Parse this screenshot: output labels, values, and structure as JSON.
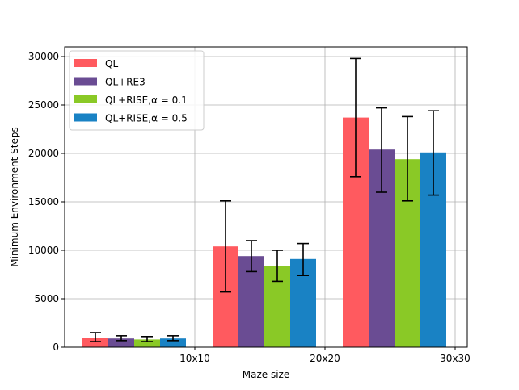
{
  "chart_data": {
    "type": "bar",
    "categories": [
      "10x10",
      "20x20",
      "30x30"
    ],
    "xlabel": "Maze size",
    "ylabel": "Minimum Environment Steps",
    "ylim": [
      0,
      31000
    ],
    "yticks": [
      0,
      5000,
      10000,
      15000,
      20000,
      25000,
      30000
    ],
    "grid": true,
    "legend_position": "top-left",
    "series": [
      {
        "name": "QL",
        "color": "#ff5a5f",
        "values": [
          1000,
          10400,
          23700
        ],
        "err_low": [
          580,
          5700,
          17600
        ],
        "err_high": [
          1500,
          15100,
          29800
        ]
      },
      {
        "name": "QL+RE3",
        "color": "#6a4c93",
        "values": [
          900,
          9400,
          20400
        ],
        "err_low": [
          680,
          7800,
          16000
        ],
        "err_high": [
          1180,
          11000,
          24700
        ]
      },
      {
        "name": "QL+RISE,α = 0.1",
        "color": "#8ac926",
        "values": [
          800,
          8400,
          19400
        ],
        "err_low": [
          580,
          6800,
          15100
        ],
        "err_high": [
          1100,
          10000,
          23800
        ]
      },
      {
        "name": "QL+RISE,α = 0.5",
        "color": "#1982c4",
        "values": [
          900,
          9100,
          20100
        ],
        "err_low": [
          680,
          7400,
          15700
        ],
        "err_high": [
          1180,
          10700,
          24400
        ]
      }
    ]
  }
}
